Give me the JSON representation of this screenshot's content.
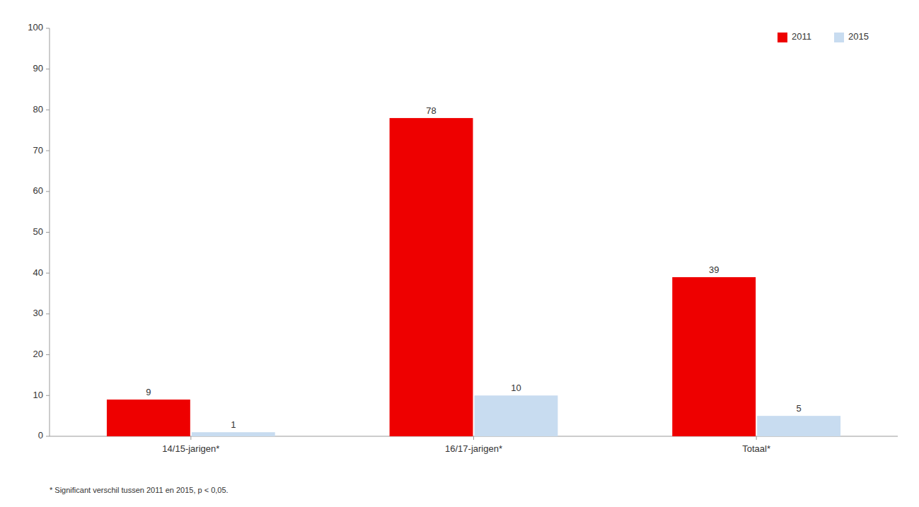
{
  "chart_data": {
    "type": "bar",
    "categories": [
      "14/15-jarigen*",
      "16/17-jarigen*",
      "Totaal*"
    ],
    "series": [
      {
        "name": "2011",
        "color": "#EE0000",
        "values": [
          9,
          78,
          39
        ]
      },
      {
        "name": "2015",
        "color": "#C8DCF0",
        "values": [
          1,
          10,
          5
        ]
      }
    ],
    "ylim": [
      0,
      100
    ],
    "yticks": [
      0,
      10,
      20,
      30,
      40,
      50,
      60,
      70,
      80,
      90,
      100
    ],
    "grid": false,
    "legend": "upper right",
    "data_labels": true,
    "annotations": [
      "* Significant verschil tussen 2011 en 2015, p < 0,05."
    ]
  }
}
